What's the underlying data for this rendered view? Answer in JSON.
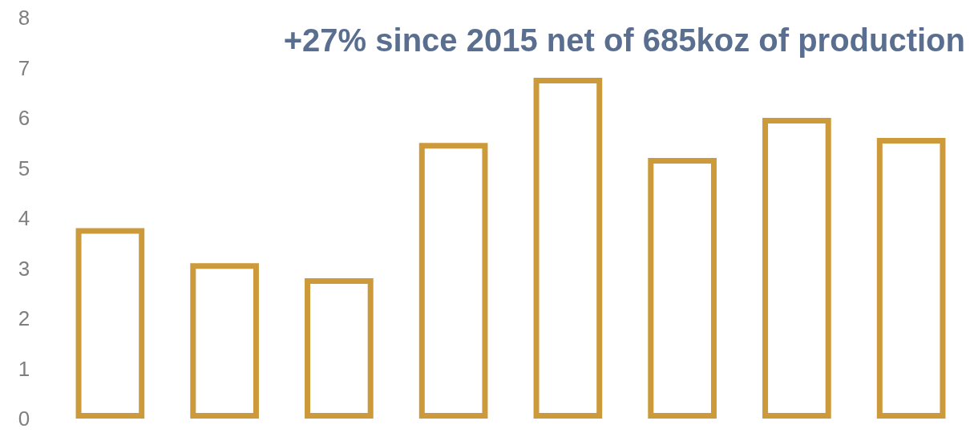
{
  "chart_data": {
    "type": "bar",
    "title": "+27% since 2015 net of 685koz of production",
    "categories": [
      null,
      null,
      null,
      null,
      null,
      null,
      null,
      null
    ],
    "values": [
      3.8,
      3.1,
      2.8,
      5.5,
      6.8,
      5.2,
      6.0,
      5.6
    ],
    "color": "#cc9a3a",
    "ylim": [
      0,
      8
    ],
    "yticks": [
      0,
      1,
      2,
      3,
      4,
      5,
      6,
      7,
      8
    ],
    "tick_labels": "y"
  }
}
